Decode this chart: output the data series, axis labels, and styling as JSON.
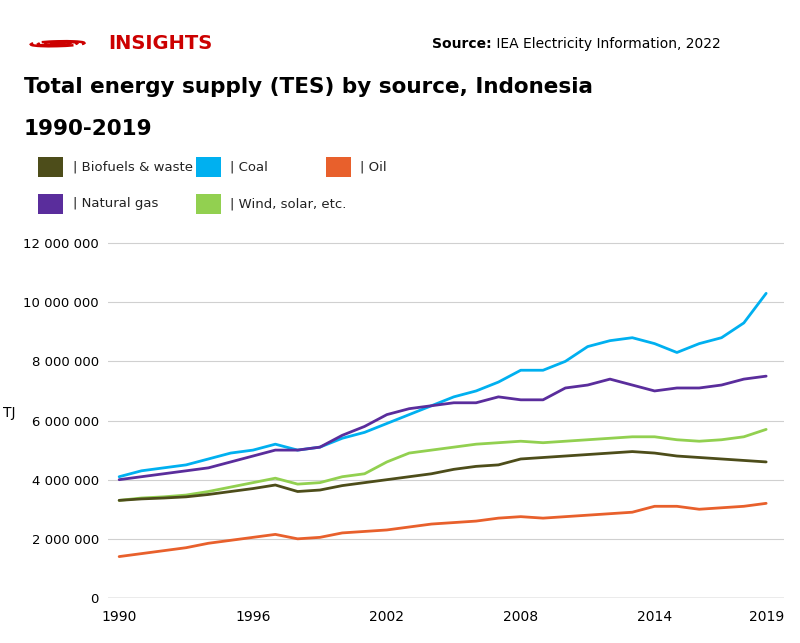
{
  "title_line1": "Total energy supply (TES) by source, Indonesia",
  "title_line2": "1990-2019",
  "source_bold": "Source:",
  "source_text": " IEA Electricity Information, 2022",
  "insights_text": "INSIGHTS",
  "ylabel": "TJ",
  "years": [
    1990,
    1991,
    1992,
    1993,
    1994,
    1995,
    1996,
    1997,
    1998,
    1999,
    2000,
    2001,
    2002,
    2003,
    2004,
    2005,
    2006,
    2007,
    2008,
    2009,
    2010,
    2011,
    2012,
    2013,
    2014,
    2015,
    2016,
    2017,
    2018,
    2019
  ],
  "series": {
    "Biofuels & waste": {
      "color": "#4d4d1a",
      "data": [
        3300000,
        3350000,
        3380000,
        3420000,
        3500000,
        3600000,
        3700000,
        3820000,
        3600000,
        3650000,
        3800000,
        3900000,
        4000000,
        4100000,
        4200000,
        4350000,
        4450000,
        4500000,
        4700000,
        4750000,
        4800000,
        4850000,
        4900000,
        4950000,
        4900000,
        4800000,
        4750000,
        4700000,
        4650000,
        4600000
      ]
    },
    "Coal": {
      "color": "#00b0f0",
      "data": [
        4100000,
        4300000,
        4400000,
        4500000,
        4700000,
        4900000,
        5000000,
        5200000,
        5000000,
        5100000,
        5400000,
        5600000,
        5900000,
        6200000,
        6500000,
        6800000,
        7000000,
        7300000,
        7700000,
        7700000,
        8000000,
        8500000,
        8700000,
        8800000,
        8600000,
        8300000,
        8600000,
        8800000,
        9300000,
        10300000
      ]
    },
    "Oil": {
      "color": "#e8602c",
      "data": [
        1400000,
        1500000,
        1600000,
        1700000,
        1850000,
        1950000,
        2050000,
        2150000,
        2000000,
        2050000,
        2200000,
        2250000,
        2300000,
        2400000,
        2500000,
        2550000,
        2600000,
        2700000,
        2750000,
        2700000,
        2750000,
        2800000,
        2850000,
        2900000,
        3100000,
        3100000,
        3000000,
        3050000,
        3100000,
        3200000
      ]
    },
    "Natural gas": {
      "color": "#5a2d9c",
      "data": [
        4000000,
        4100000,
        4200000,
        4300000,
        4400000,
        4600000,
        4800000,
        5000000,
        5000000,
        5100000,
        5500000,
        5800000,
        6200000,
        6400000,
        6500000,
        6600000,
        6600000,
        6800000,
        6700000,
        6700000,
        7100000,
        7200000,
        7400000,
        7200000,
        7000000,
        7100000,
        7100000,
        7200000,
        7400000,
        7500000
      ]
    },
    "Wind, solar, etc.": {
      "color": "#92d050",
      "data": [
        3300000,
        3380000,
        3420000,
        3480000,
        3600000,
        3750000,
        3900000,
        4050000,
        3850000,
        3900000,
        4100000,
        4200000,
        4600000,
        4900000,
        5000000,
        5100000,
        5200000,
        5250000,
        5300000,
        5250000,
        5300000,
        5350000,
        5400000,
        5450000,
        5450000,
        5350000,
        5300000,
        5350000,
        5450000,
        5700000
      ]
    }
  },
  "legend_order": [
    "Biofuels & waste",
    "Coal",
    "Oil",
    "Natural gas",
    "Wind, solar, etc."
  ],
  "ylim": [
    0,
    12500000
  ],
  "yticks": [
    0,
    2000000,
    4000000,
    6000000,
    8000000,
    10000000,
    12000000
  ],
  "ytick_labels": [
    "0",
    "2 000 000",
    "4 000 000",
    "6 000 000",
    "8 000 000",
    "10 000 000",
    "12 000 000"
  ],
  "xticks": [
    1990,
    1996,
    2002,
    2008,
    2014,
    2019
  ],
  "bg_color": "#ffffff",
  "header_bg": "#ebebeb",
  "legend_bg": "#f0f0f0",
  "insights_color": "#cc0000",
  "grid_color": "#d0d0d0",
  "spine_color": "#aaaaaa"
}
